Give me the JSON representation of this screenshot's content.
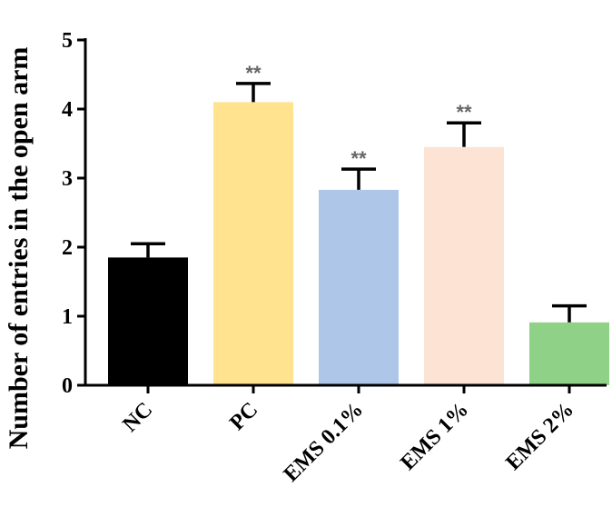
{
  "chart_data": {
    "type": "bar",
    "ylabel": "Number of entries in the open arm",
    "xlabel": "",
    "ylim": [
      0,
      5
    ],
    "yticks": [
      0,
      1,
      2,
      3,
      4,
      5
    ],
    "grid": false,
    "categories": [
      "NC",
      "PC",
      "EMS 0.1%",
      "EMS 1%",
      "EMS 2%"
    ],
    "values": [
      1.85,
      4.1,
      2.83,
      3.45,
      0.91
    ],
    "errors": [
      0.2,
      0.27,
      0.3,
      0.35,
      0.24
    ],
    "annotations": [
      "",
      "**",
      "**",
      "**",
      ""
    ],
    "colors": [
      "#000000",
      "#ffe38f",
      "#aec7e8",
      "#fde3d3",
      "#90d188"
    ]
  }
}
